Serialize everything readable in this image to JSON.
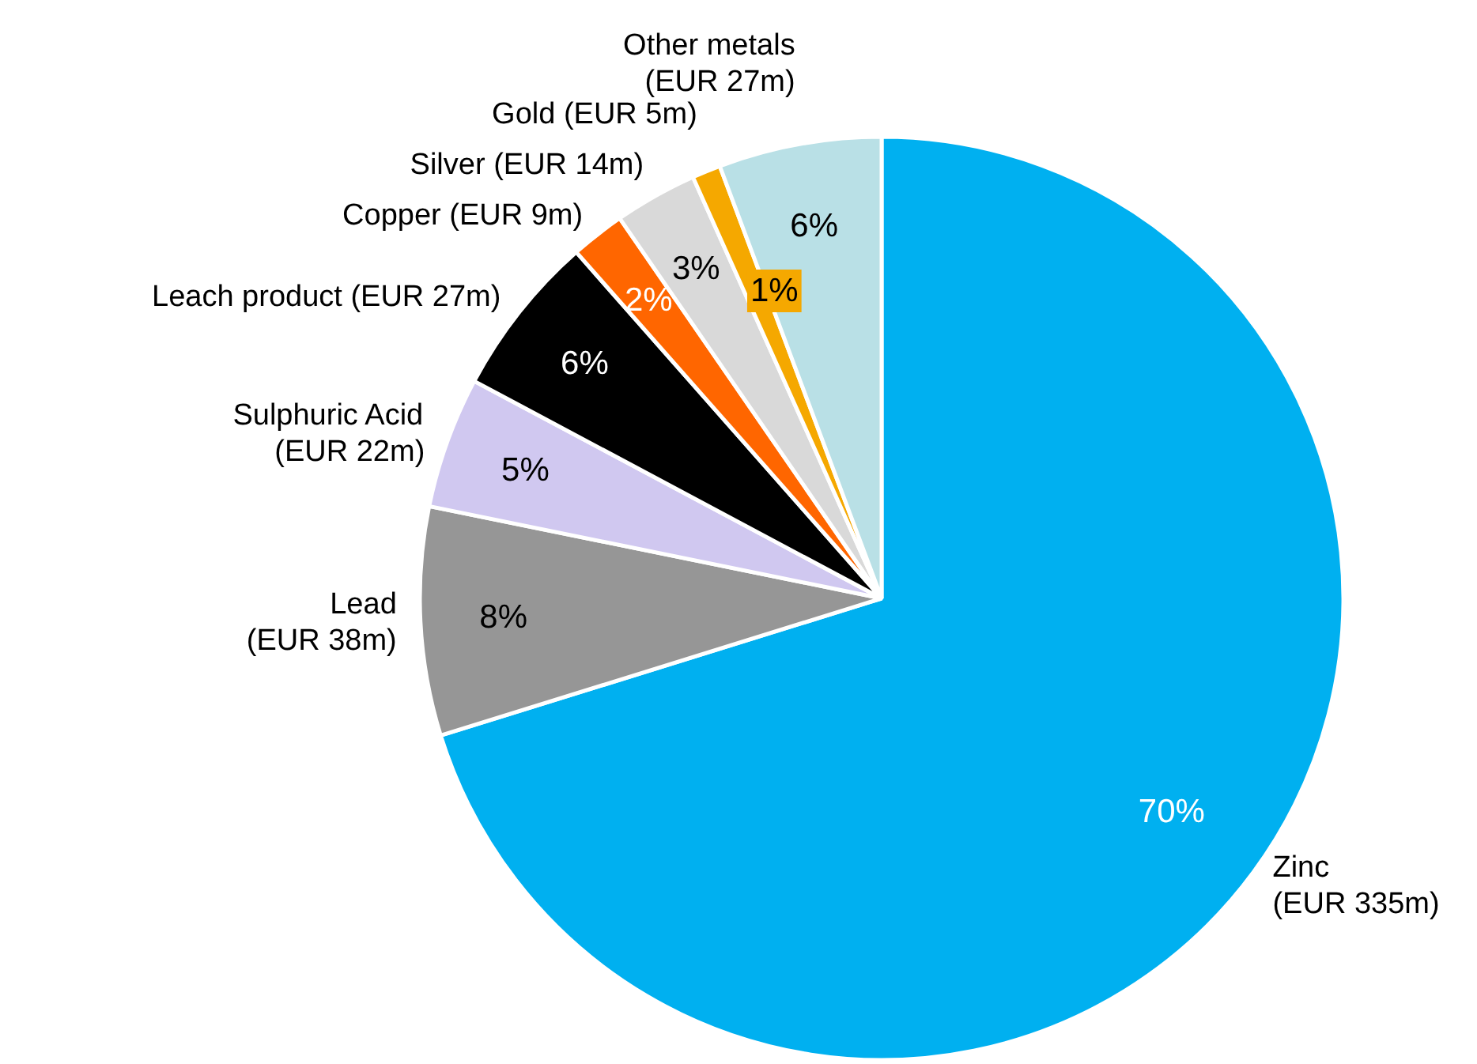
{
  "chart_data": {
    "type": "pie",
    "categories": [
      "Zinc\n(EUR 335m)",
      "Lead\n(EUR 38m)",
      "Sulphuric Acid\n(EUR 22m)",
      "Leach product (EUR 27m)",
      "Copper (EUR 9m)",
      "Silver (EUR 14m)",
      "Gold (EUR 5m)",
      "Other metals\n(EUR 27m)"
    ],
    "values": [
      70.2,
      8.0,
      4.6,
      5.7,
      1.9,
      2.9,
      1.0,
      5.7
    ],
    "colors": [
      "#00b0f0",
      "#969696",
      "#d0c8f0",
      "#000000",
      "#ff6600",
      "#d9d9d9",
      "#f5a800",
      "#b9e0e6"
    ],
    "value_labels": [
      "70%",
      "8%",
      "5%",
      "6%",
      "2%",
      "3%",
      "1%",
      "6%"
    ]
  }
}
